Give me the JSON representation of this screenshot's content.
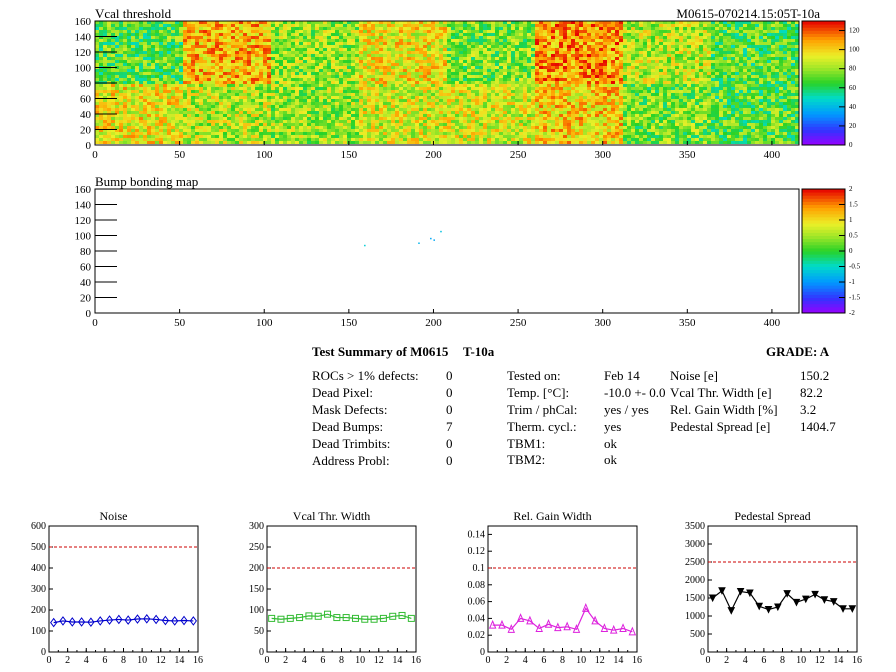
{
  "header": {
    "map1_title": "Vcal threshold",
    "map2_title": "Bump bonding map",
    "module_id": "M0615-070214.15:05T-10a"
  },
  "summary": {
    "title": "Test Summary of M0615",
    "test": "T-10a",
    "grade": "GRADE:  A",
    "left": [
      {
        "label": "ROCs > 1% defects:",
        "value": "0"
      },
      {
        "label": "Dead Pixel:",
        "value": "0"
      },
      {
        "label": "Mask Defects:",
        "value": "0"
      },
      {
        "label": "Dead Bumps:",
        "value": "7"
      },
      {
        "label": "Dead Trimbits:",
        "value": "0"
      },
      {
        "label": "Address Probl:",
        "value": "0"
      }
    ],
    "middle": [
      {
        "label": "Tested on:",
        "value": "Feb 14"
      },
      {
        "label": "Temp. [°C]:",
        "value": "-10.0 +- 0.0"
      },
      {
        "label": "Trim / phCal:",
        "value": "yes / yes"
      },
      {
        "label": "Therm. cycl.:",
        "value": "yes"
      },
      {
        "label": "TBM1:",
        "value": "ok"
      },
      {
        "label": "TBM2:",
        "value": "ok"
      }
    ],
    "right": [
      {
        "label": "Noise [e]",
        "value": "150.2"
      },
      {
        "label": "Vcal Thr. Width [e]",
        "value": "82.2"
      },
      {
        "label": "Rel. Gain Width [%]",
        "value": "3.2"
      },
      {
        "label": "Pedestal Spread [e]",
        "value": "1404.7"
      }
    ]
  },
  "chart_data": [
    {
      "type": "heatmap",
      "title": "Vcal threshold",
      "xlim": [
        0,
        416
      ],
      "ylim": [
        0,
        160
      ],
      "xticks": [
        0,
        50,
        100,
        150,
        200,
        250,
        300,
        350,
        400
      ],
      "yticks": [
        0,
        20,
        40,
        60,
        80,
        100,
        120,
        140,
        160
      ],
      "colorbar_ticks": [
        0,
        20,
        40,
        60,
        80,
        100,
        120
      ],
      "zlim": [
        0,
        130
      ],
      "roc_means_top": [
        70,
        105,
        80,
        95,
        75,
        110,
        85,
        70
      ],
      "roc_means_bottom": [
        95,
        85,
        80,
        90,
        90,
        100,
        75,
        70
      ]
    },
    {
      "type": "heatmap",
      "title": "Bump bonding map",
      "xlim": [
        0,
        416
      ],
      "ylim": [
        0,
        160
      ],
      "xticks": [
        0,
        50,
        100,
        150,
        200,
        250,
        300,
        350,
        400
      ],
      "yticks": [
        0,
        20,
        40,
        60,
        80,
        100,
        120,
        140,
        160
      ],
      "colorbar_ticks": [
        -2,
        -1.5,
        -1,
        -0.5,
        0,
        0.5,
        1,
        1.5,
        2
      ],
      "zlim": [
        -2,
        2
      ],
      "points": [
        [
          159,
          88,
          -0.6
        ],
        [
          191,
          91,
          -0.8
        ],
        [
          198,
          97,
          -0.9
        ],
        [
          200,
          95,
          -0.9
        ],
        [
          204,
          106,
          -0.7
        ]
      ]
    },
    {
      "type": "line",
      "title": "Noise",
      "x": [
        0,
        1,
        2,
        3,
        4,
        5,
        6,
        7,
        8,
        9,
        10,
        11,
        12,
        13,
        14,
        15
      ],
      "values": [
        140,
        148,
        143,
        143,
        142,
        148,
        152,
        155,
        152,
        157,
        158,
        155,
        150,
        148,
        150,
        148
      ],
      "xlim": [
        0,
        16
      ],
      "ylim": [
        0,
        600
      ],
      "limit": 500,
      "xticks": [
        0,
        2,
        4,
        6,
        8,
        10,
        12,
        14,
        16
      ],
      "yticks": [
        0,
        100,
        200,
        300,
        400,
        500,
        600
      ],
      "color": "#0000cc",
      "marker": "diamond"
    },
    {
      "type": "line",
      "title": "Vcal Thr. Width",
      "x": [
        0,
        1,
        2,
        3,
        4,
        5,
        6,
        7,
        8,
        9,
        10,
        11,
        12,
        13,
        14,
        15
      ],
      "values": [
        80,
        78,
        80,
        82,
        86,
        85,
        90,
        82,
        82,
        80,
        78,
        78,
        80,
        85,
        87,
        80
      ],
      "xlim": [
        0,
        16
      ],
      "ylim": [
        0,
        300
      ],
      "limit": 200,
      "xticks": [
        0,
        2,
        4,
        6,
        8,
        10,
        12,
        14,
        16
      ],
      "yticks": [
        0,
        50,
        100,
        150,
        200,
        250,
        300
      ],
      "color": "#33bb33",
      "marker": "square"
    },
    {
      "type": "line",
      "title": "Rel. Gain Width",
      "x": [
        0,
        1,
        2,
        3,
        4,
        5,
        6,
        7,
        8,
        9,
        10,
        11,
        12,
        13,
        14,
        15
      ],
      "values": [
        0.032,
        0.032,
        0.027,
        0.04,
        0.037,
        0.028,
        0.033,
        0.029,
        0.03,
        0.027,
        0.052,
        0.037,
        0.028,
        0.026,
        0.028,
        0.024
      ],
      "xlim": [
        0,
        16
      ],
      "ylim": [
        0,
        0.15
      ],
      "limit": 0.1,
      "xticks": [
        0,
        2,
        4,
        6,
        8,
        10,
        12,
        14,
        16
      ],
      "yticks": [
        0,
        0.02,
        0.04,
        0.06,
        0.08,
        0.1,
        0.12,
        0.14
      ],
      "color": "#dd22dd",
      "marker": "triangle"
    },
    {
      "type": "line",
      "title": "Pedestal Spread",
      "x": [
        0,
        1,
        2,
        3,
        4,
        5,
        6,
        7,
        8,
        9,
        10,
        11,
        12,
        13,
        14,
        15
      ],
      "values": [
        1500,
        1700,
        1150,
        1680,
        1640,
        1270,
        1180,
        1250,
        1620,
        1380,
        1470,
        1600,
        1450,
        1400,
        1200,
        1200
      ],
      "xlim": [
        0,
        16
      ],
      "ylim": [
        0,
        3500
      ],
      "limit": 2500,
      "xticks": [
        0,
        2,
        4,
        6,
        8,
        10,
        12,
        14,
        16
      ],
      "yticks": [
        0,
        500,
        1000,
        1500,
        2000,
        2500,
        3000,
        3500
      ],
      "color": "#000000",
      "marker": "triangle-down"
    }
  ]
}
